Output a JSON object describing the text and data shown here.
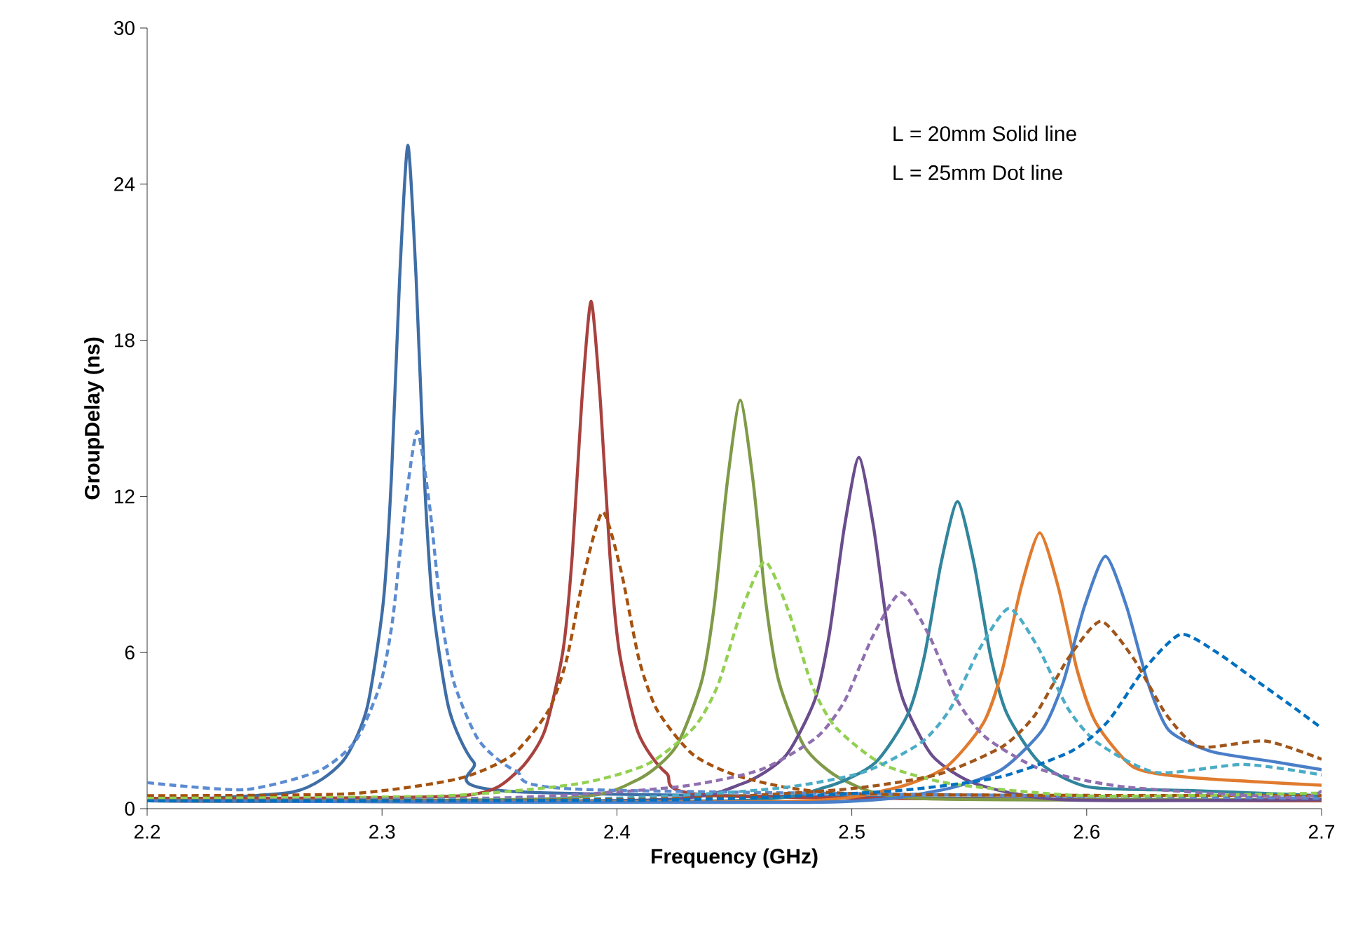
{
  "chart_data": {
    "type": "line",
    "xlabel": "Frequency (GHz)",
    "ylabel": "GroupDelay (ns)",
    "xlim": [
      2.2,
      2.7
    ],
    "ylim": [
      0,
      30
    ],
    "xticks": [
      2.2,
      2.3,
      2.4,
      2.5,
      2.6,
      2.7
    ],
    "yticks": [
      0,
      6,
      12,
      18,
      24,
      30
    ],
    "grid": false,
    "annotations": [
      "L = 20mm Solid line",
      "L = 25mm Dot line"
    ],
    "series": [
      {
        "color": "#3f6ea6",
        "line_style": "solid",
        "x": [
          2.2,
          2.262,
          2.283,
          2.2935,
          2.3005,
          2.304,
          2.3075,
          2.311,
          2.3145,
          2.318,
          2.3215,
          2.3285,
          2.339,
          2.36,
          2.7
        ],
        "values": [
          0.3,
          0.64,
          1.79,
          3.83,
          7.91,
          12.75,
          20.4,
          25.5,
          20.4,
          12.75,
          7.91,
          3.83,
          1.79,
          0.64,
          0.3
        ]
      },
      {
        "color": "#a8423f",
        "line_style": "solid",
        "x": [
          2.2,
          2.333,
          2.357,
          2.369,
          2.377,
          2.381,
          2.385,
          2.389,
          2.393,
          2.397,
          2.401,
          2.409,
          2.421,
          2.445,
          2.7
        ],
        "values": [
          0.4,
          0.49,
          1.37,
          2.93,
          6.05,
          9.75,
          15.6,
          19.5,
          15.6,
          9.75,
          6.05,
          2.93,
          1.37,
          0.49,
          0.3
        ]
      },
      {
        "color": "#7f9a48",
        "line_style": "solid",
        "x": [
          2.2,
          2.3755,
          2.4085,
          2.425,
          2.436,
          2.4415,
          2.447,
          2.4525,
          2.458,
          2.4635,
          2.469,
          2.48,
          2.4965,
          2.5295,
          2.7
        ],
        "values": [
          0.3,
          0.39,
          1.1,
          2.36,
          4.87,
          7.85,
          12.56,
          15.7,
          12.56,
          7.85,
          4.87,
          2.36,
          1.1,
          0.39,
          0.35
        ]
      },
      {
        "color": "#6a4d8c",
        "line_style": "solid",
        "x": [
          2.2,
          2.4155,
          2.453,
          2.4718,
          2.4843,
          2.4905,
          2.4968,
          2.503,
          2.5093,
          2.5155,
          2.5218,
          2.5343,
          2.553,
          2.5905,
          2.7
        ],
        "values": [
          0.3,
          0.34,
          0.95,
          2.03,
          4.19,
          6.75,
          10.8,
          13.5,
          10.8,
          6.75,
          4.19,
          2.03,
          0.95,
          0.34,
          0.35
        ]
      },
      {
        "color": "#31859c",
        "line_style": "solid",
        "x": [
          2.2,
          2.447,
          2.489,
          2.51,
          2.524,
          2.531,
          2.538,
          2.545,
          2.552,
          2.559,
          2.566,
          2.58,
          2.601,
          2.643,
          2.7
        ],
        "values": [
          0.3,
          0.3,
          0.83,
          1.77,
          3.66,
          5.9,
          9.44,
          11.8,
          9.44,
          5.9,
          3.66,
          1.77,
          0.83,
          0.7,
          0.5
        ]
      },
      {
        "color": "#e07b2e",
        "line_style": "solid",
        "x": [
          2.2,
          2.468,
          2.516,
          2.54,
          2.556,
          2.564,
          2.572,
          2.58,
          2.588,
          2.596,
          2.604,
          2.62,
          2.644,
          2.7
        ],
        "values": [
          0.3,
          0.27,
          0.74,
          1.59,
          3.29,
          5.3,
          8.48,
          10.6,
          8.48,
          5.3,
          3.29,
          1.59,
          1.2,
          0.9
        ]
      },
      {
        "color": "#4a7fc8",
        "line_style": "solid",
        "x": [
          2.2,
          2.482,
          2.536,
          2.563,
          2.581,
          2.59,
          2.599,
          2.608,
          2.617,
          2.626,
          2.635,
          2.653,
          2.68,
          2.7
        ],
        "values": [
          0.3,
          0.24,
          0.68,
          1.46,
          3.01,
          4.85,
          7.76,
          9.7,
          7.76,
          4.85,
          3.01,
          2.2,
          1.8,
          1.5
        ]
      },
      {
        "color": "#5b8bd0",
        "line_style": "dashed",
        "x": [
          2.2,
          2.2415,
          2.273,
          2.2888,
          2.2993,
          2.3045,
          2.3098,
          2.315,
          2.3203,
          2.3255,
          2.3308,
          2.3413,
          2.357,
          2.3885,
          2.7
        ],
        "values": [
          1.0,
          0.73,
          1.45,
          2.61,
          4.79,
          7.25,
          11.6,
          14.5,
          11.6,
          7.25,
          4.79,
          2.61,
          1.45,
          0.73,
          0.4
        ]
      },
      {
        "color": "#a5520f",
        "line_style": "dashed",
        "x": [
          2.2,
          2.2855,
          2.332,
          2.3553,
          2.3708,
          2.3785,
          2.3863,
          2.394,
          2.4018,
          2.4095,
          2.4173,
          2.4328,
          2.456,
          2.5025,
          2.7
        ],
        "values": [
          0.5,
          0.57,
          1.14,
          2.05,
          3.76,
          5.7,
          9.12,
          11.4,
          9.12,
          5.7,
          3.76,
          2.05,
          1.14,
          0.57,
          0.5
        ]
      },
      {
        "color": "#92d050",
        "line_style": "dashed",
        "x": [
          2.2,
          2.323,
          2.383,
          2.413,
          2.433,
          2.443,
          2.453,
          2.463,
          2.473,
          2.483,
          2.493,
          2.513,
          2.543,
          2.603,
          2.7
        ],
        "values": [
          0.4,
          0.48,
          0.95,
          1.71,
          3.14,
          4.75,
          7.6,
          9.5,
          7.6,
          4.75,
          3.14,
          1.71,
          0.95,
          0.48,
          0.6
        ]
      },
      {
        "color": "#8f6fb0",
        "line_style": "dashed",
        "x": [
          2.2,
          2.353,
          2.425,
          2.461,
          2.485,
          2.497,
          2.509,
          2.521,
          2.533,
          2.545,
          2.557,
          2.581,
          2.617,
          2.689,
          2.7
        ],
        "values": [
          0.3,
          0.42,
          0.83,
          1.49,
          2.74,
          4.15,
          6.64,
          8.3,
          6.64,
          4.15,
          2.74,
          1.49,
          0.83,
          0.42,
          0.7
        ]
      },
      {
        "color": "#4bacc6",
        "line_style": "dashed",
        "x": [
          2.2,
          2.392,
          2.467,
          2.5045,
          2.5295,
          2.542,
          2.5545,
          2.567,
          2.5795,
          2.592,
          2.6045,
          2.6295,
          2.667,
          2.7
        ],
        "values": [
          0.3,
          0.39,
          0.77,
          1.39,
          2.54,
          3.85,
          6.16,
          7.7,
          6.16,
          3.85,
          2.54,
          1.39,
          1.7,
          1.3
        ]
      },
      {
        "color": "#a0561b",
        "line_style": "dashed",
        "x": [
          2.2,
          2.41,
          2.494,
          2.536,
          2.564,
          2.578,
          2.592,
          2.606,
          2.62,
          2.634,
          2.648,
          2.676,
          2.7
        ],
        "values": [
          0.3,
          0.36,
          0.72,
          1.3,
          2.38,
          3.6,
          5.76,
          7.2,
          5.76,
          3.6,
          2.38,
          2.6,
          1.9
        ]
      },
      {
        "color": "#0070c0",
        "line_style": "dashed",
        "x": [
          2.2,
          2.423,
          2.516,
          2.5625,
          2.5935,
          2.609,
          2.6245,
          2.64,
          2.6555,
          2.671,
          2.6865,
          2.7
        ],
        "values": [
          0.3,
          0.34,
          0.67,
          1.21,
          2.21,
          3.35,
          5.36,
          6.7,
          6.0,
          5.0,
          4.0,
          3.1
        ]
      }
    ]
  }
}
